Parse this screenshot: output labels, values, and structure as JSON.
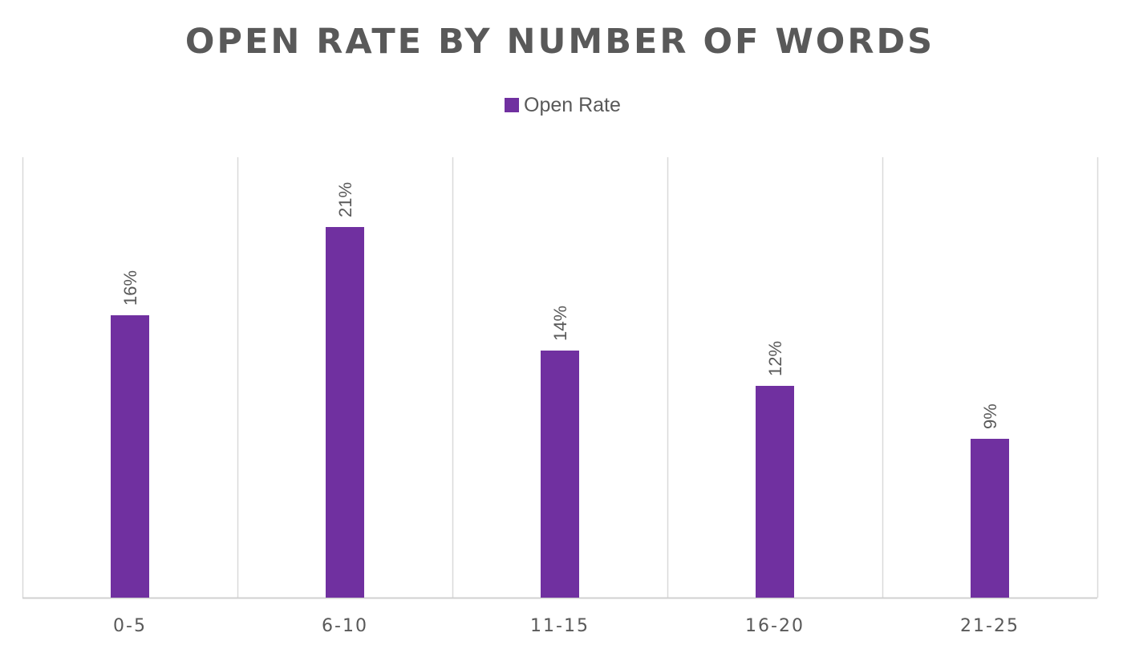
{
  "chart_data": {
    "type": "bar",
    "title": "OPEN RATE BY NUMBER OF WORDS",
    "legend": {
      "position": "top",
      "entries": [
        "Open Rate"
      ]
    },
    "categories": [
      "0-5",
      "6-10",
      "11-15",
      "16-20",
      "21-25"
    ],
    "series": [
      {
        "name": "Open Rate",
        "color": "#7030a0",
        "values": [
          16,
          21,
          14,
          12,
          9
        ],
        "labels": [
          "16%",
          "21%",
          "14%",
          "12%",
          "9%"
        ]
      }
    ],
    "ylim": [
      0,
      25
    ],
    "unit": "%",
    "vertical_gridlines": true,
    "data_labels_rotated": true
  }
}
